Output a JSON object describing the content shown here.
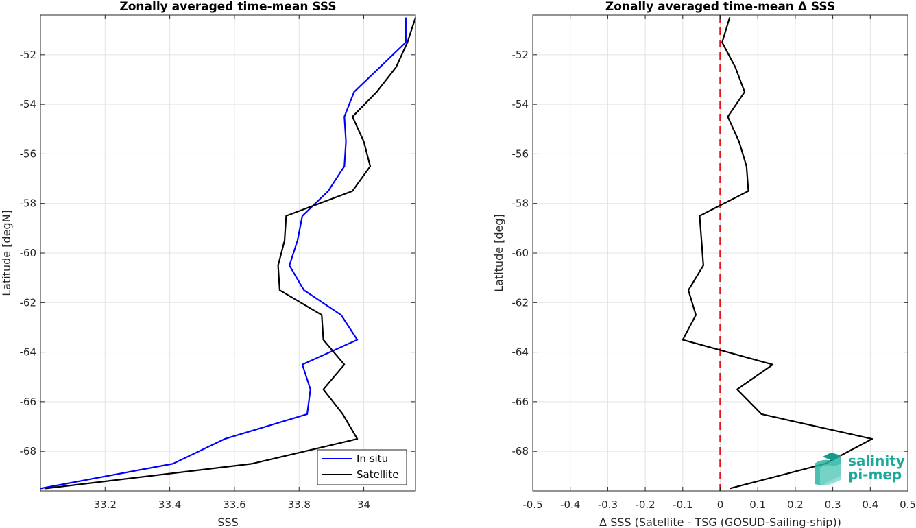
{
  "chart_data": [
    {
      "type": "line",
      "title": "Zonally averaged time-mean SSS",
      "xlabel": "SSS",
      "ylabel": "Latitude [degN]",
      "xlim": [
        33.0,
        34.16
      ],
      "ylim": [
        -69.6,
        -50.4
      ],
      "xticks": [
        33.2,
        33.4,
        33.6,
        33.8,
        34.0
      ],
      "xtick_labels": [
        "33.2",
        "33.4",
        "33.6",
        "33.8",
        "34"
      ],
      "yticks": [
        -68,
        -66,
        -64,
        -62,
        -60,
        -58,
        -56,
        -54,
        -52
      ],
      "ytick_labels": [
        "-68",
        "-66",
        "-64",
        "-62",
        "-60",
        "-58",
        "-56",
        "-54",
        "-52"
      ],
      "grid": true,
      "legend_position": "bottom-right",
      "series": [
        {
          "name": "In situ",
          "color": "#0000ff",
          "x": [
            34.13,
            34.13,
            34.05,
            33.97,
            33.94,
            33.945,
            33.94,
            33.89,
            33.81,
            33.795,
            33.77,
            33.815,
            33.93,
            33.98,
            33.81,
            33.835,
            33.825,
            33.57,
            33.41,
            33.0
          ],
          "y": [
            -50.5,
            -51.5,
            -52.5,
            -53.5,
            -54.5,
            -55.5,
            -56.5,
            -57.5,
            -58.5,
            -59.5,
            -60.5,
            -61.5,
            -62.5,
            -63.5,
            -64.5,
            -65.5,
            -66.5,
            -67.5,
            -68.5,
            -69.5
          ]
        },
        {
          "name": "Satellite",
          "color": "#000000",
          "x": [
            34.16,
            34.135,
            34.1,
            34.04,
            33.965,
            34.0,
            34.02,
            33.965,
            33.76,
            33.755,
            33.735,
            33.74,
            33.87,
            33.875,
            33.94,
            33.875,
            33.935,
            33.98,
            33.655,
            33.015
          ],
          "y": [
            -50.5,
            -51.5,
            -52.5,
            -53.5,
            -54.5,
            -55.5,
            -56.5,
            -57.5,
            -58.5,
            -59.5,
            -60.5,
            -61.5,
            -62.5,
            -63.5,
            -64.5,
            -65.5,
            -66.5,
            -67.5,
            -68.5,
            -69.5
          ]
        }
      ]
    },
    {
      "type": "line",
      "title": "Zonally averaged time-mean Δ SSS",
      "xlabel": "Δ SSS (Satellite - TSG (GOSUD-Sailing-ship))",
      "ylabel": "Latitude [deg]",
      "xlim": [
        -0.5,
        0.5
      ],
      "ylim": [
        -69.6,
        -50.4
      ],
      "xticks": [
        -0.5,
        -0.4,
        -0.3,
        -0.2,
        -0.1,
        0,
        0.1,
        0.2,
        0.3,
        0.4,
        0.5
      ],
      "xtick_labels": [
        "-0.5",
        "-0.4",
        "-0.3",
        "-0.2",
        "-0.1",
        "0",
        "0.1",
        "0.2",
        "0.3",
        "0.4",
        "0.5"
      ],
      "yticks": [
        -68,
        -66,
        -64,
        -62,
        -60,
        -58,
        -56,
        -54,
        -52
      ],
      "ytick_labels": [
        "-68",
        "-66",
        "-64",
        "-62",
        "-60",
        "-58",
        "-56",
        "-54",
        "-52"
      ],
      "grid": true,
      "reference_line": {
        "x": 0,
        "color": "#e8141b",
        "style": "dashed"
      },
      "series": [
        {
          "color": "#000000",
          "x": [
            0.025,
            0.005,
            0.04,
            0.065,
            0.02,
            0.05,
            0.07,
            0.075,
            -0.055,
            -0.05,
            -0.045,
            -0.085,
            -0.065,
            -0.1,
            0.14,
            0.045,
            0.11,
            0.405,
            0.28,
            0.025
          ],
          "y": [
            -50.5,
            -51.5,
            -52.5,
            -53.5,
            -54.5,
            -55.5,
            -56.5,
            -57.5,
            -58.5,
            -59.5,
            -60.5,
            -61.5,
            -62.5,
            -63.5,
            -64.5,
            -65.5,
            -66.5,
            -67.5,
            -68.5,
            -69.5
          ]
        }
      ]
    }
  ],
  "logo": {
    "line1": "salinity",
    "line2": "pi-mep",
    "color": "#1aa99a"
  }
}
